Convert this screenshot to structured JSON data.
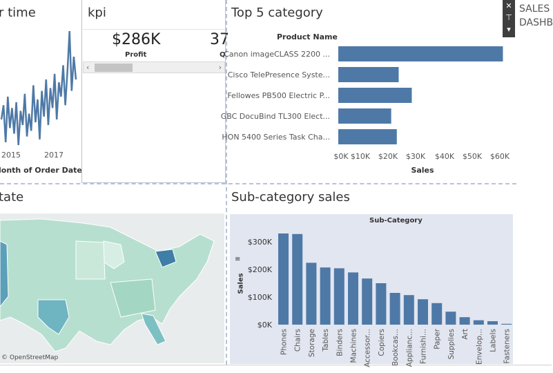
{
  "panels": {
    "sales_over_time_title": "r time",
    "kpi_title": "kpi",
    "top5_title": "Top 5 category",
    "state_title": "tate",
    "subcat_title": "Sub-category sales"
  },
  "kpi": {
    "profit_value": "$286K",
    "profit_label": "Profit",
    "second_value": "37",
    "second_label": "Q"
  },
  "line_chart": {
    "x_ticks": [
      "2015",
      "2017"
    ],
    "x_label": "lonth of Order Date"
  },
  "map": {
    "attribution": "© OpenStreetMap"
  },
  "side_header": {
    "line1": "SALES",
    "line2": "DASHB"
  },
  "toolbar": {
    "close_glyph": "✕",
    "pin_glyph": "⊤",
    "menu_glyph": "▾"
  },
  "colors": {
    "bar": "#4e79a7",
    "panel_border": "#b8c2d6",
    "subcat_bg": "#e2e6f0"
  },
  "chart_data": [
    {
      "type": "line",
      "x_ticks": [
        "2015",
        "2017"
      ],
      "xlabel": "lonth of Order Date",
      "values": [
        14,
        19,
        6,
        22,
        11,
        18,
        9,
        20,
        5,
        17,
        12,
        23,
        8,
        16,
        10,
        26,
        13,
        21,
        7,
        24,
        15,
        28,
        12,
        25,
        18,
        30,
        14,
        27,
        22,
        33,
        19,
        31,
        45,
        24,
        36,
        28
      ]
    },
    {
      "type": "bar",
      "orientation": "horizontal",
      "category_header": "Product Name",
      "categories": [
        "Canon imageCLASS 2200 ...",
        "Cisco TelePresence Syste...",
        "Fellowes PB500 Electric P...",
        "GBC DocuBind TL300 Elect...",
        "HON 5400 Series Task Cha..."
      ],
      "values": [
        61600,
        22600,
        27500,
        19800,
        21900
      ],
      "xlabel": "Sales",
      "x_ticks": [
        "$0K",
        "$10K",
        "$20K",
        "$30K",
        "$40K",
        "$50K",
        "$60K"
      ],
      "xlim": [
        0,
        62000
      ]
    },
    {
      "type": "bar",
      "title": "Sub-Category",
      "categories": [
        "Phones",
        "Chairs",
        "Storage",
        "Tables",
        "Binders",
        "Machines",
        "Accessor...",
        "Copiers",
        "Bookcas...",
        "Applianc...",
        "Furnishi...",
        "Paper",
        "Supplies",
        "Art",
        "Envelop...",
        "Labels",
        "Fasteners"
      ],
      "values": [
        330000,
        328000,
        224000,
        207000,
        204000,
        189000,
        167000,
        150000,
        115000,
        107000,
        92000,
        78000,
        47000,
        27000,
        16000,
        12500,
        3000
      ],
      "ylabel": "Sales",
      "y_ticks": [
        "$0K",
        "$100K",
        "$200K",
        "$300K"
      ],
      "ylim": [
        0,
        350000
      ]
    }
  ]
}
